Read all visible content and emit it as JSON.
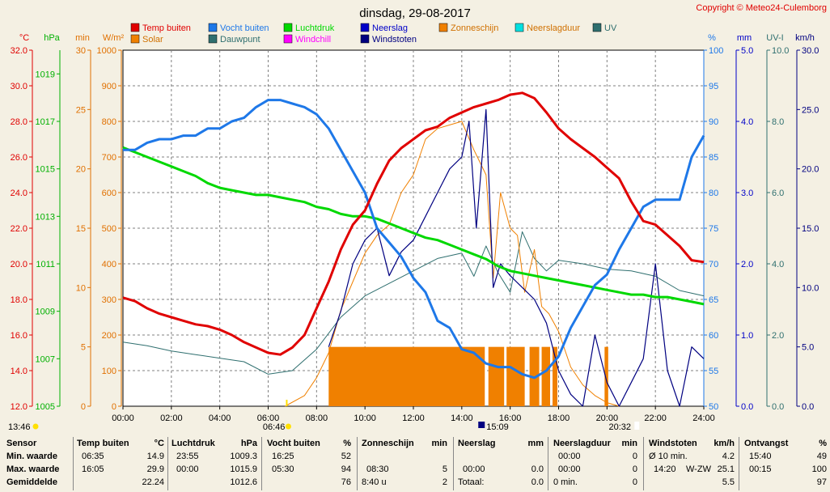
{
  "title": "dinsdag, 29-08-2017",
  "copyright": "Copyright © Meteo24-Culemborg",
  "legend": [
    {
      "label": "Temp buiten",
      "color": "#e00000"
    },
    {
      "label": "Vocht buiten",
      "color": "#1e78e8"
    },
    {
      "label": "Luchtdruk",
      "color": "#00d800"
    },
    {
      "label": "Neerslag",
      "color": "#0000c8"
    },
    {
      "label": "Zonneschijn",
      "color": "#f08000"
    },
    {
      "label": "Neerslagduur",
      "color": "#00e0e0"
    },
    {
      "label": "UV",
      "color": "#2f6f6f"
    },
    {
      "label": "Solar",
      "color": "#f08000"
    },
    {
      "label": "Dauwpunt",
      "color": "#2f6f6f"
    },
    {
      "label": "Windchill",
      "color": "#ff00ff"
    },
    {
      "label": "Windstoten",
      "color": "#000080"
    }
  ],
  "chart_data": {
    "type": "line",
    "title": "dinsdag, 29-08-2017",
    "x_label": "time",
    "x_range": [
      0,
      24
    ],
    "x_ticks": [
      "00:00",
      "02:00",
      "04:00",
      "06:00",
      "08:00",
      "10:00",
      "12:00",
      "14:00",
      "16:00",
      "18:00",
      "20:00",
      "22:00",
      "24:00"
    ],
    "axes": {
      "temp": {
        "unit": "°C",
        "range": [
          12,
          32
        ],
        "ticks": [
          "12.0",
          "14.0",
          "16.0",
          "18.0",
          "20.0",
          "22.0",
          "24.0",
          "26.0",
          "28.0",
          "30.0",
          "32.0"
        ]
      },
      "pressure": {
        "unit": "hPa",
        "range": [
          1005,
          1020
        ],
        "ticks": [
          "1005",
          "1007",
          "1009",
          "1011",
          "1013",
          "1015",
          "1017",
          "1019"
        ]
      },
      "minutes": {
        "unit": "min",
        "range": [
          0,
          30
        ],
        "ticks": [
          "0",
          "5",
          "10",
          "15",
          "20",
          "25",
          "30"
        ]
      },
      "solar": {
        "unit": "W/m²",
        "range": [
          0,
          1000
        ],
        "ticks": [
          "0",
          "100",
          "200",
          "300",
          "400",
          "500",
          "600",
          "700",
          "800",
          "900",
          "1000"
        ]
      },
      "humidity": {
        "unit": "%",
        "range": [
          50,
          100
        ],
        "ticks": [
          "50",
          "55",
          "60",
          "65",
          "70",
          "75",
          "80",
          "85",
          "90",
          "95",
          "100"
        ]
      },
      "rain": {
        "unit": "mm",
        "range": [
          0,
          5
        ],
        "ticks": [
          "0.0",
          "1.0",
          "2.0",
          "3.0",
          "4.0",
          "5.0"
        ]
      },
      "uv": {
        "unit": "UV-I",
        "range": [
          0,
          10
        ],
        "ticks": [
          "0.0",
          "2.0",
          "4.0",
          "6.0",
          "8.0",
          "10.0"
        ]
      },
      "wind": {
        "unit": "km/h",
        "range": [
          0,
          30
        ],
        "ticks": [
          "0.0",
          "5.0",
          "10.0",
          "15.0",
          "20.0",
          "25.0",
          "30.0"
        ]
      }
    },
    "series": [
      {
        "name": "Temp buiten",
        "axis": "temp",
        "color": "#e00000",
        "x": [
          0,
          0.5,
          1,
          1.5,
          2,
          2.5,
          3,
          3.5,
          4,
          4.5,
          5,
          5.5,
          6,
          6.5,
          7,
          7.5,
          8,
          8.5,
          9,
          9.5,
          10,
          10.5,
          11,
          11.5,
          12,
          12.5,
          13,
          13.5,
          14,
          14.5,
          15,
          15.5,
          16,
          16.5,
          17,
          17.5,
          18,
          18.5,
          19,
          19.5,
          20,
          20.5,
          21,
          21.5,
          22,
          22.5,
          23,
          23.5,
          24
        ],
        "values": [
          18.1,
          17.9,
          17.5,
          17.2,
          17.0,
          16.8,
          16.6,
          16.5,
          16.3,
          16.0,
          15.6,
          15.3,
          15.0,
          14.9,
          15.3,
          16.0,
          17.5,
          19.0,
          20.8,
          22.2,
          23.0,
          24.5,
          25.8,
          26.5,
          27.0,
          27.5,
          27.7,
          28.2,
          28.5,
          28.8,
          29.0,
          29.2,
          29.5,
          29.6,
          29.3,
          28.5,
          27.6,
          27.0,
          26.5,
          26.0,
          25.4,
          24.8,
          23.5,
          22.4,
          22.2,
          21.6,
          21.0,
          20.2,
          20.1
        ]
      },
      {
        "name": "Vocht buiten",
        "axis": "humidity",
        "color": "#1e78e8",
        "x": [
          0,
          0.5,
          1,
          1.5,
          2,
          2.5,
          3,
          3.5,
          4,
          4.5,
          5,
          5.5,
          6,
          6.5,
          7,
          7.5,
          8,
          8.5,
          9,
          9.5,
          10,
          10.5,
          11,
          11.5,
          12,
          12.5,
          13,
          13.5,
          14,
          14.5,
          15,
          15.5,
          16,
          16.5,
          17,
          17.5,
          18,
          18.5,
          19,
          19.5,
          20,
          20.5,
          21,
          21.5,
          22,
          22.5,
          23,
          23.5,
          24
        ],
        "values": [
          86,
          86,
          87,
          87.5,
          87.5,
          88,
          88,
          89,
          89,
          90,
          90.5,
          92,
          93,
          93,
          92.5,
          92,
          91,
          89,
          86,
          83,
          80,
          75,
          73,
          71,
          68,
          66,
          62,
          61,
          58,
          57.5,
          56,
          55.5,
          55.5,
          54.5,
          54,
          55,
          57,
          61,
          64,
          67,
          68.5,
          72,
          75,
          78,
          79,
          79,
          79,
          85,
          88
        ]
      },
      {
        "name": "Luchtdruk",
        "axis": "pressure",
        "color": "#00d800",
        "x": [
          0,
          0.5,
          1,
          1.5,
          2,
          2.5,
          3,
          3.5,
          4,
          4.5,
          5,
          5.5,
          6,
          6.5,
          7,
          7.5,
          8,
          8.5,
          9,
          9.5,
          10,
          10.5,
          11,
          11.5,
          12,
          12.5,
          13,
          13.5,
          14,
          14.5,
          15,
          15.5,
          16,
          16.5,
          17,
          17.5,
          18,
          18.5,
          19,
          19.5,
          20,
          20.5,
          21,
          21.5,
          22,
          22.5,
          23,
          23.5,
          24
        ],
        "values": [
          1015.9,
          1015.7,
          1015.5,
          1015.3,
          1015.1,
          1014.9,
          1014.7,
          1014.4,
          1014.2,
          1014.1,
          1014.0,
          1013.9,
          1013.9,
          1013.8,
          1013.7,
          1013.6,
          1013.4,
          1013.3,
          1013.1,
          1013.0,
          1013.0,
          1012.9,
          1012.7,
          1012.5,
          1012.3,
          1012.1,
          1012.0,
          1011.8,
          1011.6,
          1011.4,
          1011.2,
          1010.9,
          1010.7,
          1010.6,
          1010.5,
          1010.4,
          1010.3,
          1010.2,
          1010.1,
          1010.0,
          1009.9,
          1009.8,
          1009.7,
          1009.7,
          1009.6,
          1009.6,
          1009.5,
          1009.4,
          1009.3
        ]
      },
      {
        "name": "Dauwpunt",
        "axis": "temp",
        "color": "#2f6f6f",
        "x": [
          0,
          1,
          2,
          3,
          4,
          5,
          6,
          7,
          8,
          9,
          10,
          11,
          12,
          13,
          14,
          14.5,
          15,
          15.5,
          16,
          16.5,
          17,
          17.5,
          18,
          19,
          20,
          21,
          22,
          23,
          24
        ],
        "values": [
          15.6,
          15.4,
          15.1,
          14.9,
          14.7,
          14.5,
          13.8,
          14.0,
          15.2,
          17.0,
          18.2,
          18.9,
          19.6,
          20.3,
          20.6,
          19.3,
          21.0,
          19.5,
          18.4,
          21.8,
          20.3,
          19.6,
          20.2,
          20.0,
          19.7,
          19.6,
          19.3,
          18.5,
          18.2
        ]
      },
      {
        "name": "Solar",
        "axis": "solar",
        "color": "#f08000",
        "x": [
          6.7,
          7.5,
          8,
          8.5,
          9,
          9.5,
          10,
          10.5,
          11,
          11.5,
          12,
          12.5,
          13,
          13.5,
          14,
          14.5,
          15,
          15.3,
          15.6,
          16,
          16.3,
          16.6,
          17,
          17.3,
          17.6,
          18,
          18.5,
          19,
          19.5,
          20,
          20.5
        ],
        "values": [
          0,
          30,
          80,
          150,
          270,
          350,
          430,
          480,
          510,
          600,
          650,
          750,
          780,
          790,
          800,
          720,
          650,
          360,
          600,
          500,
          480,
          320,
          440,
          280,
          260,
          210,
          110,
          60,
          30,
          10,
          0
        ]
      },
      {
        "name": "Windstoten",
        "axis": "wind",
        "color": "#000080",
        "x": [
          8.5,
          9,
          9.5,
          10,
          10.5,
          11,
          11.5,
          12,
          12.5,
          13,
          13.5,
          14,
          14.3,
          14.6,
          15,
          15.3,
          15.6,
          16,
          16.5,
          17,
          17.5,
          18,
          18.5,
          19,
          19.5,
          20,
          20.5,
          21,
          21.5,
          22,
          22.5,
          23,
          23.5,
          24
        ],
        "values": [
          5,
          8,
          12,
          14,
          15,
          11,
          13,
          14,
          16,
          18,
          20,
          21,
          24,
          15,
          25,
          10,
          12,
          11,
          10,
          9,
          7,
          3,
          1,
          0,
          6,
          2,
          0,
          2,
          4,
          12,
          3,
          0,
          5,
          4
        ]
      },
      {
        "name": "Zonneschijn",
        "axis": "minutes",
        "color": "#f08000",
        "bars": [
          [
            8.5,
            14.95
          ],
          [
            15.1,
            15.75
          ],
          [
            15.85,
            16.6
          ],
          [
            16.8,
            17.2
          ],
          [
            17.3,
            17.65
          ],
          [
            17.75,
            17.95
          ],
          [
            19.9,
            20.05
          ]
        ],
        "value": 5
      }
    ],
    "markers": {
      "left_time": "13:46",
      "sunrise": "06:46",
      "midday": "15:09",
      "sunset": "20:32"
    }
  },
  "stats": {
    "sensor": {
      "header": "Sensor",
      "min": "Min. waarde",
      "max": "Max. waarde",
      "avg": "Gemiddelde"
    },
    "temp": {
      "header": "Temp buiten",
      "unit": "°C",
      "min_time": "06:35",
      "min": "14.9",
      "max_time": "16:05",
      "max": "29.9",
      "avg": "22.24"
    },
    "pressure": {
      "header": "Luchtdruk",
      "unit": "hPa",
      "min_time": "23:55",
      "min": "1009.3",
      "max_time": "00:00",
      "max": "1015.9",
      "avg": "1012.6"
    },
    "humidity": {
      "header": "Vocht buiten",
      "unit": "%",
      "min_time": "16:25",
      "min": "52",
      "max_time": "05:30",
      "max": "94",
      "avg": "76"
    },
    "sunshine": {
      "header": "Zonneschijn",
      "unit": "min",
      "max_time": "08:30",
      "max": "5",
      "avg_label": "8:40 u",
      "avg": "2"
    },
    "rain": {
      "header": "Neerslag",
      "unit": "mm",
      "max_time": "00:00",
      "max": "0.0",
      "avg_label": "Totaal:",
      "avg": "0.0"
    },
    "raindur": {
      "header": "Neerslagduur",
      "unit": "min",
      "min_time": "00:00",
      "min": "0",
      "max_time": "00:00",
      "max": "0",
      "avg_label": "0 min.",
      "avg": "0"
    },
    "wind": {
      "header": "Windstoten",
      "unit": "km/h",
      "min_time": "Ø 10 min.",
      "min": "4.2",
      "max_time": "14:20",
      "max_dir": "W-ZW",
      "max": "25.1",
      "avg": "5.5"
    },
    "radiation": {
      "header": "Ontvangst",
      "unit": "%",
      "min_time": "15:40",
      "min": "49",
      "max_time": "00:15",
      "max": "100",
      "avg": "97"
    }
  }
}
